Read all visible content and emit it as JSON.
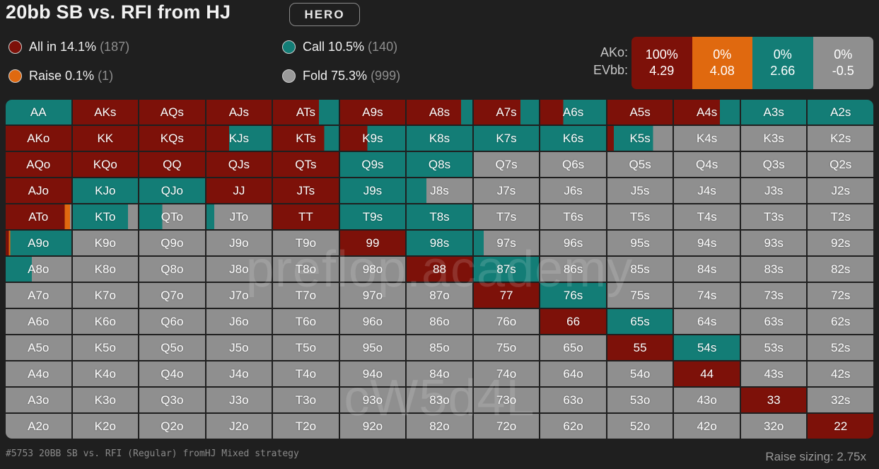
{
  "header": {
    "title": "20bb SB vs. RFI from HJ",
    "hero_badge": "HERO"
  },
  "legend": {
    "allin_label": "All in 14.1%",
    "allin_count": "(187)",
    "raise_label": "Raise 0.1%",
    "raise_count": "(1)",
    "call_label": "Call 10.5%",
    "call_count": "(140)",
    "fold_label": "Fold 75.3%",
    "fold_count": "(999)"
  },
  "colors": {
    "allin": "#7d1109",
    "raise": "#e0690f",
    "call": "#137d76",
    "fold": "#8f8f8f"
  },
  "ako_panel": {
    "label_hand": "AKo:",
    "label_ev": "EVbb:",
    "boxes": [
      {
        "pct": "100%",
        "ev": "4.29"
      },
      {
        "pct": "0%",
        "ev": "4.08"
      },
      {
        "pct": "0%",
        "ev": "2.66"
      },
      {
        "pct": "0%",
        "ev": "-0.5"
      }
    ]
  },
  "grid": {
    "rows": [
      [
        "AA",
        "AKs",
        "AQs",
        "AJs",
        "ATs",
        "A9s",
        "A8s",
        "A7s",
        "A6s",
        "A5s",
        "A4s",
        "A3s",
        "A2s"
      ],
      [
        "AKo",
        "KK",
        "KQs",
        "KJs",
        "KTs",
        "K9s",
        "K8s",
        "K7s",
        "K6s",
        "K5s",
        "K4s",
        "K3s",
        "K2s"
      ],
      [
        "AQo",
        "KQo",
        "QQ",
        "QJs",
        "QTs",
        "Q9s",
        "Q8s",
        "Q7s",
        "Q6s",
        "Q5s",
        "Q4s",
        "Q3s",
        "Q2s"
      ],
      [
        "AJo",
        "KJo",
        "QJo",
        "JJ",
        "JTs",
        "J9s",
        "J8s",
        "J7s",
        "J6s",
        "J5s",
        "J4s",
        "J3s",
        "J2s"
      ],
      [
        "ATo",
        "KTo",
        "QTo",
        "JTo",
        "TT",
        "T9s",
        "T8s",
        "T7s",
        "T6s",
        "T5s",
        "T4s",
        "T3s",
        "T2s"
      ],
      [
        "A9o",
        "K9o",
        "Q9o",
        "J9o",
        "T9o",
        "99",
        "98s",
        "97s",
        "96s",
        "95s",
        "94s",
        "93s",
        "92s"
      ],
      [
        "A8o",
        "K8o",
        "Q8o",
        "J8o",
        "T8o",
        "98o",
        "88",
        "87s",
        "86s",
        "85s",
        "84s",
        "83s",
        "82s"
      ],
      [
        "A7o",
        "K7o",
        "Q7o",
        "J7o",
        "T7o",
        "97o",
        "87o",
        "77",
        "76s",
        "75s",
        "74s",
        "73s",
        "72s"
      ],
      [
        "A6o",
        "K6o",
        "Q6o",
        "J6o",
        "T6o",
        "96o",
        "86o",
        "76o",
        "66",
        "65s",
        "64s",
        "63s",
        "62s"
      ],
      [
        "A5o",
        "K5o",
        "Q5o",
        "J5o",
        "T5o",
        "95o",
        "85o",
        "75o",
        "65o",
        "55",
        "54s",
        "53s",
        "52s"
      ],
      [
        "A4o",
        "K4o",
        "Q4o",
        "J4o",
        "T4o",
        "94o",
        "84o",
        "74o",
        "64o",
        "54o",
        "44",
        "43s",
        "42s"
      ],
      [
        "A3o",
        "K3o",
        "Q3o",
        "J3o",
        "T3o",
        "93o",
        "83o",
        "73o",
        "63o",
        "53o",
        "43o",
        "33",
        "32s"
      ],
      [
        "A2o",
        "K2o",
        "Q2o",
        "J2o",
        "T2o",
        "92o",
        "82o",
        "72o",
        "62o",
        "52o",
        "42o",
        "32o",
        "22"
      ]
    ],
    "mix": {
      "AA": [
        0,
        0,
        1.0,
        0
      ],
      "ATs": [
        0.7,
        0,
        0.3,
        0
      ],
      "A9s": [
        1.0,
        0,
        0,
        0
      ],
      "A8s": [
        0.83,
        0,
        0.17,
        0
      ],
      "A7s": [
        0.72,
        0,
        0.28,
        0
      ],
      "A6s": [
        0.35,
        0,
        0.65,
        0
      ],
      "A4s": [
        0.7,
        0,
        0.3,
        0
      ],
      "A3s": [
        0,
        0,
        1.0,
        0
      ],
      "A2s": [
        0,
        0,
        1.0,
        0
      ],
      "KJs": [
        0.35,
        0,
        0.65,
        0
      ],
      "KTs": [
        0.78,
        0,
        0.22,
        0
      ],
      "K9s": [
        0.42,
        0,
        0.58,
        0
      ],
      "K8s": [
        0,
        0,
        1.0,
        0
      ],
      "K7s": [
        0,
        0,
        1.0,
        0
      ],
      "K6s": [
        0,
        0,
        1.0,
        0
      ],
      "K5s": [
        0.1,
        0,
        0.6,
        0.3
      ],
      "Q9s": [
        0,
        0,
        1.0,
        0
      ],
      "Q8s": [
        0,
        0,
        1.0,
        0
      ],
      "KJo": [
        0,
        0,
        1.0,
        0
      ],
      "QJo": [
        0,
        0,
        1.0,
        0
      ],
      "J9s": [
        0,
        0,
        1.0,
        0
      ],
      "J8s": [
        0,
        0,
        0.3,
        0.7
      ],
      "ATo": [
        0.9,
        0.08,
        0,
        0.02
      ],
      "KTo": [
        0,
        0,
        0.85,
        0.15
      ],
      "QTo": [
        0,
        0,
        0.35,
        0.65
      ],
      "JTo": [
        0,
        0,
        0.12,
        0.88
      ],
      "T9s": [
        0,
        0,
        1.0,
        0
      ],
      "T8s": [
        0,
        0,
        1.0,
        0
      ],
      "A9o": [
        0.05,
        0.02,
        0.93,
        0
      ],
      "98s": [
        0,
        0,
        1.0,
        0
      ],
      "97s": [
        0,
        0,
        0.15,
        0.85
      ],
      "A8o": [
        0,
        0,
        0.4,
        0.6
      ],
      "87s": [
        0,
        0,
        1.0,
        0
      ],
      "76s": [
        0,
        0,
        1.0,
        0
      ],
      "65s": [
        0,
        0,
        1.0,
        0
      ],
      "54s": [
        0,
        0,
        1.0,
        0
      ]
    },
    "allin_hands": [
      "AKs",
      "AQs",
      "AJs",
      "A5s",
      "AKo",
      "KK",
      "KQs",
      "AQo",
      "KQo",
      "QQ",
      "QJs",
      "QTs",
      "AJo",
      "JJ",
      "JTs",
      "TT",
      "99",
      "88",
      "77",
      "66",
      "55",
      "44",
      "33",
      "22"
    ]
  },
  "watermark": {
    "top_text": "preflop.academy",
    "bottom_text": "cW5d4L"
  },
  "footer": {
    "left": "#5753 20BB SB vs. RFI (Regular) fromHJ Mixed strategy",
    "right": "Raise sizing: 2.75x"
  }
}
